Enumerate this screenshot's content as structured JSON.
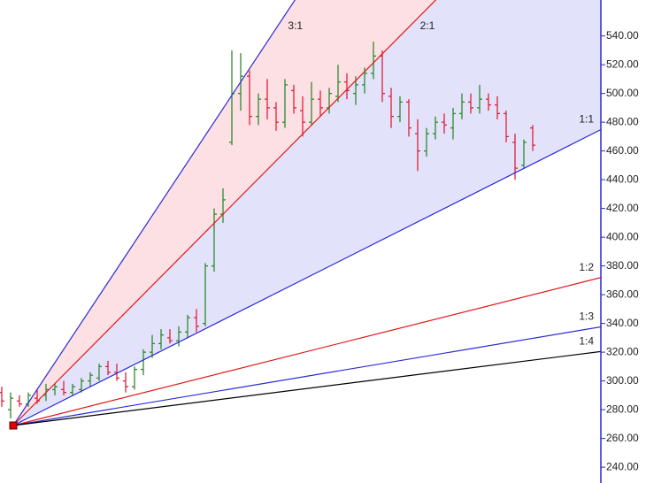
{
  "chart_data": {
    "type": "ohlc",
    "x": [
      0,
      1,
      2,
      3,
      4,
      5,
      6,
      7,
      8,
      9,
      10,
      11,
      12,
      13,
      14,
      15,
      16,
      17,
      18,
      19,
      20,
      21,
      22,
      23,
      24,
      25,
      26,
      27,
      28,
      29,
      30,
      31,
      32,
      33,
      34,
      35,
      36,
      37,
      38,
      39,
      40,
      41,
      42,
      43,
      44,
      45,
      46,
      47,
      48,
      49,
      50,
      51,
      52,
      53,
      54,
      55,
      56,
      57,
      58,
      59,
      60
    ],
    "open": [
      292,
      280,
      286,
      284,
      288,
      290,
      294,
      294,
      292,
      294,
      300,
      302,
      310,
      306,
      300,
      296,
      308,
      320,
      326,
      330,
      328,
      334,
      344,
      340,
      380,
      416,
      466,
      500,
      512,
      484,
      496,
      490,
      480,
      502,
      488,
      480,
      496,
      490,
      498,
      508,
      500,
      506,
      514,
      526,
      498,
      484,
      494,
      472,
      460,
      472,
      480,
      476,
      486,
      494,
      490,
      496,
      492,
      486,
      466,
      450,
      476
    ],
    "high": [
      296,
      292,
      290,
      292,
      294,
      298,
      298,
      300,
      298,
      302,
      306,
      312,
      314,
      312,
      306,
      310,
      322,
      332,
      336,
      336,
      338,
      346,
      350,
      382,
      420,
      434,
      530,
      528,
      516,
      500,
      510,
      494,
      510,
      506,
      498,
      508,
      502,
      504,
      520,
      514,
      512,
      518,
      536,
      530,
      504,
      498,
      496,
      482,
      476,
      484,
      486,
      490,
      500,
      500,
      506,
      500,
      498,
      488,
      472,
      468,
      478
    ],
    "low": [
      282,
      274,
      282,
      282,
      284,
      286,
      290,
      290,
      290,
      292,
      296,
      300,
      304,
      300,
      292,
      294,
      304,
      316,
      322,
      326,
      324,
      330,
      334,
      338,
      376,
      410,
      464,
      488,
      478,
      478,
      482,
      474,
      476,
      486,
      470,
      478,
      484,
      486,
      494,
      496,
      492,
      500,
      510,
      494,
      476,
      480,
      470,
      446,
      456,
      468,
      472,
      468,
      482,
      486,
      486,
      488,
      482,
      466,
      440,
      448,
      460
    ],
    "close": [
      286,
      288,
      284,
      290,
      286,
      294,
      296,
      292,
      296,
      300,
      304,
      310,
      306,
      302,
      296,
      308,
      320,
      326,
      332,
      328,
      334,
      344,
      338,
      380,
      416,
      426,
      500,
      512,
      484,
      496,
      490,
      480,
      506,
      490,
      480,
      496,
      490,
      500,
      508,
      502,
      506,
      514,
      526,
      500,
      484,
      494,
      476,
      460,
      472,
      480,
      478,
      486,
      494,
      490,
      496,
      492,
      486,
      470,
      448,
      466,
      464
    ],
    "up_color": "#2e8b2e",
    "down_color": "#e0203a",
    "xlim": [
      -0.2,
      67.7
    ],
    "ylim": [
      229,
      565
    ],
    "yticks": [
      {
        "value": 240,
        "label": "240.00"
      },
      {
        "value": 260,
        "label": "260.00"
      },
      {
        "value": 280,
        "label": "280.00"
      },
      {
        "value": 300,
        "label": "300.00"
      },
      {
        "value": 320,
        "label": "320.00"
      },
      {
        "value": 340,
        "label": "340.00"
      },
      {
        "value": 360,
        "label": "360.00"
      },
      {
        "value": 380,
        "label": "380.00"
      },
      {
        "value": 400,
        "label": "400.00"
      },
      {
        "value": 420,
        "label": "420.00"
      },
      {
        "value": 440,
        "label": "440.00"
      },
      {
        "value": 460,
        "label": "460.00"
      },
      {
        "value": 480,
        "label": "480.00"
      },
      {
        "value": 500,
        "label": "500.00"
      },
      {
        "value": 520,
        "label": "520.00"
      },
      {
        "value": 540,
        "label": "540.00"
      }
    ],
    "axis_color": "#2a2ad0",
    "fan": {
      "origin": {
        "x": 1.3,
        "price": 269,
        "color": "#e00000"
      },
      "unit": 3.1,
      "lines": [
        {
          "label": "3:1",
          "ratio": 3,
          "color": "#2a2ad8",
          "fill": "#fde0e4"
        },
        {
          "label": "2:1",
          "ratio": 2,
          "color": "#e01818",
          "fill": "#e2e2fa"
        },
        {
          "label": "1:1",
          "ratio": 1,
          "color": "#2a2ad8"
        },
        {
          "label": "1:2",
          "ratio": 0.5,
          "color": "#e01818"
        },
        {
          "label": "1:3",
          "ratio": 0.3333,
          "color": "#2a2ad8"
        },
        {
          "label": "1:4",
          "ratio": 0.25,
          "color": "#000000"
        }
      ]
    }
  }
}
